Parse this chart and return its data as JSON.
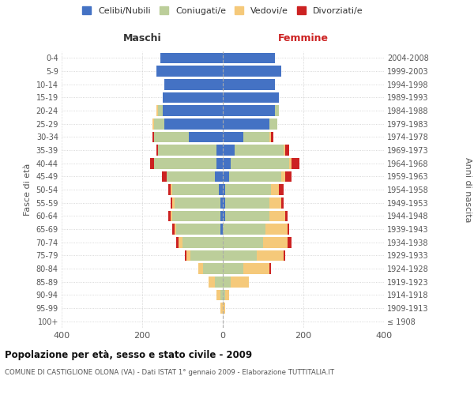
{
  "age_groups": [
    "100+",
    "95-99",
    "90-94",
    "85-89",
    "80-84",
    "75-79",
    "70-74",
    "65-69",
    "60-64",
    "55-59",
    "50-54",
    "45-49",
    "40-44",
    "35-39",
    "30-34",
    "25-29",
    "20-24",
    "15-19",
    "10-14",
    "5-9",
    "0-4"
  ],
  "birth_years": [
    "≤ 1908",
    "1909-1913",
    "1914-1918",
    "1919-1923",
    "1924-1928",
    "1929-1933",
    "1934-1938",
    "1939-1943",
    "1944-1948",
    "1949-1953",
    "1954-1958",
    "1959-1963",
    "1964-1968",
    "1969-1973",
    "1974-1978",
    "1979-1983",
    "1984-1988",
    "1989-1993",
    "1994-1998",
    "1999-2003",
    "2004-2008"
  ],
  "male": {
    "celibi": [
      0,
      0,
      0,
      0,
      0,
      0,
      0,
      5,
      5,
      5,
      10,
      20,
      15,
      15,
      85,
      145,
      150,
      150,
      145,
      165,
      155
    ],
    "coniugati": [
      0,
      0,
      5,
      20,
      50,
      80,
      100,
      110,
      120,
      115,
      115,
      120,
      155,
      145,
      85,
      25,
      10,
      0,
      0,
      0,
      0
    ],
    "vedovi": [
      0,
      5,
      10,
      15,
      10,
      10,
      10,
      5,
      5,
      5,
      5,
      0,
      0,
      0,
      0,
      5,
      5,
      0,
      0,
      0,
      0
    ],
    "divorziati": [
      0,
      0,
      0,
      0,
      0,
      5,
      5,
      5,
      5,
      5,
      5,
      10,
      10,
      5,
      5,
      0,
      0,
      0,
      0,
      0,
      0
    ]
  },
  "female": {
    "nubili": [
      0,
      0,
      0,
      0,
      0,
      0,
      0,
      0,
      5,
      5,
      5,
      15,
      20,
      30,
      50,
      115,
      130,
      140,
      130,
      145,
      130
    ],
    "coniugate": [
      0,
      0,
      5,
      20,
      50,
      85,
      100,
      105,
      110,
      110,
      115,
      130,
      145,
      120,
      65,
      20,
      10,
      0,
      0,
      0,
      0
    ],
    "vedove": [
      0,
      5,
      10,
      45,
      65,
      65,
      60,
      55,
      40,
      30,
      20,
      10,
      5,
      5,
      5,
      0,
      0,
      0,
      0,
      0,
      0
    ],
    "divorziate": [
      0,
      0,
      0,
      0,
      5,
      5,
      10,
      5,
      5,
      5,
      10,
      15,
      20,
      10,
      5,
      0,
      0,
      0,
      0,
      0,
      0
    ]
  },
  "colors": {
    "celibi_nubili": "#4472C4",
    "coniugati": "#BCCE9A",
    "vedovi": "#F5C97A",
    "divorziati": "#CC2222"
  },
  "xlim": 400,
  "title": "Popolazione per età, sesso e stato civile - 2009",
  "subtitle": "COMUNE DI CASTIGLIONE OLONA (VA) - Dati ISTAT 1° gennaio 2009 - Elaborazione TUTTITALIA.IT",
  "ylabel_left": "Fasce di età",
  "ylabel_right": "Anni di nascita",
  "xlabel_left": "Maschi",
  "xlabel_right": "Femmine",
  "legend_labels": [
    "Celibi/Nubili",
    "Coniugati/e",
    "Vedovi/e",
    "Divorziati/e"
  ]
}
